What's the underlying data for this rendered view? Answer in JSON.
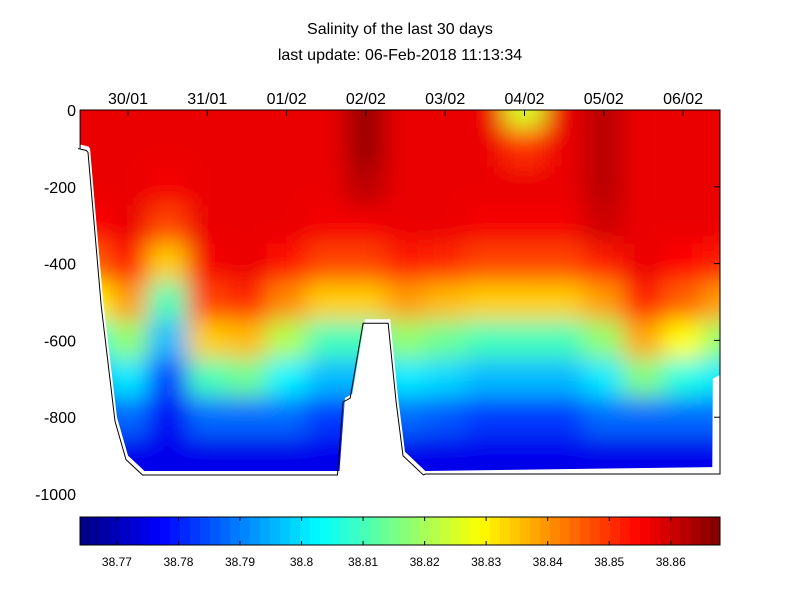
{
  "chart_data": {
    "type": "heatmap",
    "title": "Salinity of the last 30 days",
    "subtitle": "last update: 06-Feb-2018 11:13:34",
    "xlabel": "",
    "ylabel": "",
    "x_tick_labels": [
      "30/01",
      "31/01",
      "01/02",
      "02/02",
      "03/02",
      "04/02",
      "05/02",
      "06/02"
    ],
    "x_ticks": [
      "2018-01-30",
      "2018-01-31",
      "2018-02-01",
      "2018-02-02",
      "2018-02-03",
      "2018-02-04",
      "2018-02-05",
      "2018-02-06"
    ],
    "xlim": [
      "2018-01-29 09:30",
      "2018-02-06 11:10"
    ],
    "y_ticks": [
      0,
      -200,
      -400,
      -600,
      -800,
      -1000
    ],
    "y_tick_labels": [
      "0",
      "-200",
      "-400",
      "-600",
      "-800",
      "-1000"
    ],
    "ylim": [
      -1000,
      0
    ],
    "colormap": "jet",
    "colorbar": {
      "placement": "bottom",
      "ticks": [
        38.77,
        38.78,
        38.79,
        38.8,
        38.81,
        38.82,
        38.83,
        38.84,
        38.85,
        38.86
      ],
      "tick_labels": [
        "38.77",
        "38.78",
        "38.79",
        "38.8",
        "38.81",
        "38.82",
        "38.83",
        "38.84",
        "38.85",
        "38.86"
      ],
      "range": [
        38.764,
        38.868
      ],
      "levels": 64
    },
    "x": [
      "2018-01-29 12:00",
      "2018-01-30 00:00",
      "2018-01-30 12:00",
      "2018-01-31 00:00",
      "2018-01-31 12:00",
      "2018-02-01 00:00",
      "2018-02-01 12:00",
      "2018-02-02 00:00",
      "2018-02-02 12:00",
      "2018-02-03 00:00",
      "2018-02-03 12:00",
      "2018-02-04 00:00",
      "2018-02-04 12:00",
      "2018-02-05 00:00",
      "2018-02-05 12:00",
      "2018-02-06 00:00",
      "2018-02-06 12:00"
    ],
    "depths": [
      0,
      -100,
      -200,
      -300,
      -400,
      -500,
      -600,
      -700,
      -800,
      -900
    ],
    "values": [
      [
        38.857,
        38.857,
        38.857,
        38.855,
        38.845,
        38.829,
        38.806,
        38.794,
        38.781,
        38.775
      ],
      [
        38.857,
        38.857,
        38.857,
        38.857,
        38.852,
        38.839,
        38.818,
        38.801,
        38.788,
        38.775
      ],
      [
        38.857,
        38.857,
        38.856,
        38.848,
        38.834,
        38.81,
        38.796,
        38.783,
        38.776,
        38.775
      ],
      [
        38.857,
        38.857,
        38.857,
        38.857,
        38.856,
        38.848,
        38.834,
        38.81,
        38.788,
        38.775
      ],
      [
        38.857,
        38.857,
        38.857,
        38.857,
        38.857,
        38.851,
        38.836,
        38.814,
        38.788,
        38.775
      ],
      [
        38.857,
        38.857,
        38.857,
        38.857,
        38.854,
        38.841,
        38.821,
        38.802,
        38.788,
        38.775
      ],
      [
        38.857,
        38.857,
        38.857,
        38.856,
        38.848,
        38.834,
        38.81,
        38.796,
        38.783,
        38.775
      ],
      [
        38.865,
        38.865,
        38.862,
        38.856,
        38.848,
        38.834,
        38.81,
        38.796,
        38.783,
        38.775
      ],
      [
        38.857,
        38.857,
        38.857,
        38.857,
        38.852,
        38.839,
        38.818,
        38.801,
        38.788,
        38.775
      ],
      [
        38.857,
        38.857,
        38.857,
        38.857,
        38.851,
        38.836,
        38.814,
        38.799,
        38.786,
        38.775
      ],
      [
        38.857,
        38.857,
        38.857,
        38.856,
        38.848,
        38.834,
        38.81,
        38.796,
        38.783,
        38.775
      ],
      [
        38.825,
        38.85,
        38.857,
        38.856,
        38.848,
        38.834,
        38.81,
        38.796,
        38.783,
        38.775
      ],
      [
        38.857,
        38.857,
        38.857,
        38.856,
        38.848,
        38.834,
        38.81,
        38.796,
        38.783,
        38.775
      ],
      [
        38.862,
        38.862,
        38.862,
        38.86,
        38.852,
        38.839,
        38.818,
        38.801,
        38.788,
        38.775
      ],
      [
        38.857,
        38.857,
        38.857,
        38.857,
        38.857,
        38.852,
        38.838,
        38.816,
        38.788,
        38.775
      ],
      [
        38.857,
        38.857,
        38.857,
        38.857,
        38.855,
        38.845,
        38.829,
        38.806,
        38.788,
        38.775
      ],
      [
        38.857,
        38.857,
        38.857,
        38.857,
        38.852,
        38.839,
        38.818,
        38.801,
        38.788,
        38.775
      ]
    ],
    "data_bottom": [
      [
        "2018-01-29 09:30",
        -90
      ],
      [
        "2018-01-29 12:00",
        -95
      ],
      [
        "2018-01-29 12:30",
        -100
      ],
      [
        "2018-01-29 16:30",
        -500
      ],
      [
        "2018-01-29 20:40",
        -800
      ],
      [
        "2018-01-30 00:00",
        -900
      ],
      [
        "2018-01-30 05:00",
        -940
      ],
      [
        "2018-02-01 16:00",
        -940
      ],
      [
        "2018-02-01 17:40",
        -750
      ],
      [
        "2018-02-01 19:50",
        -740
      ],
      [
        "2018-02-01 23:45",
        -545
      ],
      [
        "2018-02-02 07:20",
        -545
      ],
      [
        "2018-02-02 09:45",
        -750
      ],
      [
        "2018-02-02 11:50",
        -890
      ],
      [
        "2018-02-02 18:00",
        -940
      ],
      [
        "2018-02-06 08:50",
        -930
      ],
      [
        "2018-02-06 09:00",
        -700
      ],
      [
        "2018-02-06 11:10",
        -690
      ]
    ]
  }
}
